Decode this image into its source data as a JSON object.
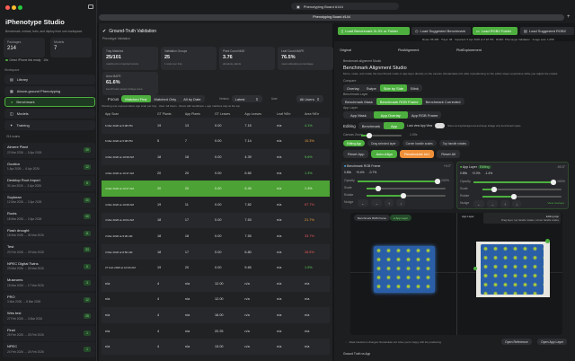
{
  "app": {
    "title": "iPhenotype Studio",
    "subtitle": "Benchmark, extract, train, and deploy from one workspace."
  },
  "sidebar": {
    "stats": [
      {
        "label": "Packages",
        "value": "214"
      },
      {
        "label": "Models",
        "value": "7"
      }
    ],
    "status": "Direct iPhone link ready · 10s",
    "workspace_label": "Workspace",
    "nav": [
      {
        "label": "Library"
      },
      {
        "label": "Above-ground Phenotyping"
      },
      {
        "label": "Benchmark"
      },
      {
        "label": "Models"
      },
      {
        "label": "Training"
      }
    ],
    "scan_count": "214 scans",
    "projects": [
      {
        "name": "Almere Plant",
        "dates": "22 Mar 2026 → 5 Apr 2026",
        "count": "30"
      },
      {
        "name": "Gootion",
        "dates": "1 Apr 2026 → 6 Apr 2026",
        "count": "12"
      },
      {
        "name": "Desktop Root Import",
        "dates": "30 Jan 2026 → 3 Apr 2026",
        "count": "8"
      },
      {
        "name": "Soybean",
        "dates": "12 Mar 2026 → 2 Apr 2026",
        "count": "30"
      },
      {
        "name": "Roots",
        "dates": "18 Mar 2026 → 2 Apr 2026",
        "count": "40"
      },
      {
        "name": "Flash drought",
        "dates": "18 Mar 2026 → 30 Mar 2026",
        "count": "11"
      },
      {
        "name": "Test",
        "dates": "20 Feb 2026 → 29 Mar 2026",
        "count": "53"
      },
      {
        "name": "NPEC Digital Twins",
        "dates": "23 Mar 2026 → 26 Mar 2026",
        "count": "6"
      },
      {
        "name": "Museums",
        "dates": "15 Mar 2026 → 17 Mar 2026",
        "count": "3"
      },
      {
        "name": "PRO",
        "dates": "3 Mar 2026 → 8 Mar 2026",
        "count": "12"
      },
      {
        "name": "Wes test",
        "dates": "27 Feb 2026 → 3 Mar 2026",
        "count": "25"
      },
      {
        "name": "Final",
        "dates": "25 Feb 2026 → 25 Feb 2026",
        "count": "1"
      },
      {
        "name": "NPEC",
        "dates": "24 Feb 2026 → 24 Feb 2026",
        "count": "1"
      }
    ]
  },
  "topbar": {
    "window_title": "Phenotyping Board #144",
    "tab_title": "Phenotyping Board #144"
  },
  "validation": {
    "title": "Ground-Truth Validation",
    "subtitle": "Phenotype Validation",
    "cards": [
      {
        "label": "Tray Matches",
        "value": "25/101",
        "sub": "matched to imported scans"
      },
      {
        "label": "Validation Groups",
        "value": "25",
        "sub": "1 scan per tray"
      },
      {
        "label": "Plant Count MAE",
        "value": "3.76",
        "sub": "absolute plants"
      },
      {
        "label": "Leaf Count MAPE",
        "value": "76.5%",
        "sub": "mean absolute percentage"
      },
      {
        "label": "Area MAPE",
        "value": "61.6%",
        "sub": "benchmark-space foliage area"
      }
    ],
    "focus_label": "Focus",
    "focus_options": [
      "Matched First",
      "Matched Only",
      "All by Date"
    ],
    "version_label": "Version",
    "version_value": "Latest",
    "user_label": "User",
    "user_value": "All Users",
    "hint": "Showing one representative app scan per tray · User: All Users · Rows with workbook + app matches stay at the top.",
    "columns": [
      "App Scan",
      "GT Plants",
      "App Plants",
      "GT Leaves",
      "App Leaves",
      "Leaf %Err",
      "Area %Err"
    ],
    "rows": [
      [
        "6 Mar 2026 at 5:08 PM",
        "19",
        "13",
        "0.00",
        "7.15",
        "n/a",
        "4.1%",
        "g"
      ],
      [
        "6 Mar 2026 at 5:08 PM",
        "5",
        "7",
        "0.00",
        "7.14",
        "n/a",
        "10.3%",
        "o"
      ],
      [
        "4 Mar 2026 at 10:08 AM",
        "18",
        "18",
        "0.00",
        "4.39",
        "n/a",
        "9.6%",
        "g"
      ],
      [
        "4 Mar 2026 at 10:37 AM",
        "20",
        "20",
        "0.00",
        "6.65",
        "n/a",
        "1.3%",
        "g"
      ],
      [
        "4 Mar 2026 at 10:37 AM",
        "20",
        "20",
        "0.00",
        "6.45",
        "n/a",
        "1.3%",
        "g"
      ],
      [
        "4 Mar 2026 at 10:08 AM",
        "19",
        "11",
        "0.00",
        "7.82",
        "n/a",
        "67.7%",
        "r"
      ],
      [
        "4 Mar 2026 at 10:04 AM",
        "18",
        "17",
        "0.00",
        "7.53",
        "n/a",
        "21.7%",
        "o"
      ],
      [
        "3 Mar 2026 at 9:00 AM",
        "18",
        "18",
        "0.00",
        "7.55",
        "n/a",
        "33.7%",
        "r"
      ],
      [
        "3 Mar 2026 at 8:50 AM",
        "18",
        "17",
        "0.00",
        "6.80",
        "n/a",
        "28.5%",
        "r"
      ],
      [
        "27 Feb 2026 at 10:00 AM",
        "19",
        "20",
        "0.00",
        "5.65",
        "n/a",
        "1.5%",
        "g"
      ],
      [
        "n/a",
        "4",
        "n/a",
        "12.00",
        "n/a",
        "n/a",
        "n/a",
        ""
      ],
      [
        "n/a",
        "4",
        "n/a",
        "12.00",
        "n/a",
        "n/a",
        "n/a",
        ""
      ],
      [
        "n/a",
        "4",
        "n/a",
        "16.00",
        "n/a",
        "n/a",
        "n/a",
        ""
      ],
      [
        "n/a",
        "4",
        "n/a",
        "20.25",
        "n/a",
        "n/a",
        "n/a",
        ""
      ],
      [
        "n/a",
        "4",
        "n/a",
        "13.00",
        "n/a",
        "n/a",
        "n/a",
        ""
      ]
    ]
  },
  "toolbar": {
    "load_benchmark": "Load Benchmark XLSX or Folder",
    "load_suggested_benchmark": "Load Suggested Benchmark",
    "load_rgb": "Load RGB2 Folder",
    "load_suggested_rgb": "Load Suggested RGB2",
    "meta": "Rows: 85,395 · Trays: 98 · Imported: 6 Apr 2026 at 5:18 PM · RGB2: Phenotype Validation · Image sets: 1,058"
  },
  "studio": {
    "tabs": [
      "Original",
      "PlotAlignment",
      "PlotExplorement"
    ],
    "kicker": "Benchmark alignment Studio",
    "title": "Benchmark Alignment Studio",
    "desc": "Move, scale, and rotate the benchmark mask or app layer directly on the canvas. Recalculate IoU after repositioning so the editor stays responsive while you adjust the masks.",
    "compare_label": "Compare",
    "compare": [
      "Overlay",
      "Swipe",
      "Side by Side",
      "Blink"
    ],
    "bench_label": "Benchmark Layer",
    "bench": [
      "Benchmark Mask",
      "Benchmark RGB Frame",
      "Benchmark Corrected"
    ],
    "app_label": "App Layer",
    "app": [
      "App Mask",
      "App Overlay",
      "App RGB Frame"
    ],
    "editing_label": "Editing",
    "editing": [
      "Benchmark",
      "App"
    ],
    "lock_label": "Lock view App View",
    "editing_hint": "Show as tray/background and keep foliage only benchmark styles",
    "zoom_label": "Canvas Zoom",
    "zoom_value": "1.00x",
    "chips": [
      "Editing App",
      "Drag selected layer",
      "Corner handle scales",
      "Top handle rotates"
    ],
    "actions": [
      "Reset App",
      "Auto-Align",
      "Recalculate IoU",
      "Reset All"
    ],
    "bench_card": {
      "title": "Benchmark RGB Frame",
      "angle": "+0.0°",
      "scale": "0.89x",
      "x": "+0.4%",
      "y": "-0.7%",
      "opacity_label": "Opacity",
      "opacity_value": "100%",
      "scale_label": "Scale",
      "rotate_label": "Rotate",
      "nudge_label": "Nudge"
    },
    "app_card": {
      "title": "App Layer",
      "badge": "Editing",
      "angle": "-90.3°",
      "scale": "0.89x",
      "x": "+2.0%",
      "y": "-1.4%",
      "opacity_label": "Opacity",
      "opacity_value": "100%",
      "scale_label": "Scale",
      "rotate_label": "Rotate",
      "nudge_label": "Nudge",
      "link": "View overlays"
    },
    "canvas": {
      "left_label": "Benchmark RGB Frame",
      "app_layer_btn": "App Layer",
      "right_label": "App Layer",
      "tip_title": "Editing App",
      "tip_text": "Drag layer, top handle rotates, corner handle scales"
    },
    "footer_note": "Mask transforms changed. Recalculate IoU when you're happy with the positioning.",
    "open_reference": "Open Reference",
    "open_app_layer": "Open App Layer",
    "bottom_label": "Ground Truth vs App"
  },
  "colors": {
    "accent": "#4caf3e",
    "orange": "#f0913a"
  }
}
